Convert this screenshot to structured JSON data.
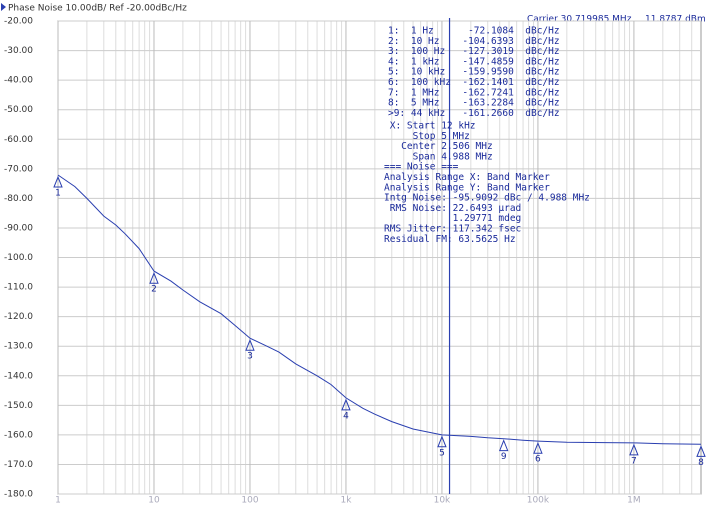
{
  "chart_data": {
    "type": "line",
    "title": "Phase Noise 10.00dB/ Ref -20.00dBc/Hz",
    "carrier": "Carrier 30.719985 MHz",
    "power": "11.8787 dBm",
    "xscale": "log",
    "grid": true,
    "xlim": [
      1,
      5000000
    ],
    "ylim": [
      -180,
      -20
    ],
    "xticks": [
      {
        "value": 1,
        "label": "1"
      },
      {
        "value": 10,
        "label": "10"
      },
      {
        "value": 100,
        "label": "100"
      },
      {
        "value": 1000,
        "label": "1k"
      },
      {
        "value": 10000,
        "label": "10k"
      },
      {
        "value": 100000,
        "label": "100k"
      },
      {
        "value": 1000000,
        "label": "1M"
      }
    ],
    "yticks": [
      {
        "value": -20,
        "label": "-20.00"
      },
      {
        "value": -30,
        "label": "-30.00"
      },
      {
        "value": -40,
        "label": "-40.00"
      },
      {
        "value": -50,
        "label": "-50.00"
      },
      {
        "value": -60,
        "label": "-60.00"
      },
      {
        "value": -70,
        "label": "-70.00"
      },
      {
        "value": -80,
        "label": "-80.00"
      },
      {
        "value": -90,
        "label": "-90.00"
      },
      {
        "value": -100,
        "label": "-100.0"
      },
      {
        "value": -110,
        "label": "-110.0"
      },
      {
        "value": -120,
        "label": "-120.0"
      },
      {
        "value": -130,
        "label": "-130.0"
      },
      {
        "value": -140,
        "label": "-140.0"
      },
      {
        "value": -150,
        "label": "-150.0"
      },
      {
        "value": -160,
        "label": "-160.0"
      },
      {
        "value": -170,
        "label": "-170.0"
      },
      {
        "value": -180,
        "label": "-180.0"
      }
    ],
    "series": [
      {
        "color": "#2a3fb0",
        "x": [
          1,
          1.5,
          2,
          3,
          4,
          5,
          7,
          10,
          15,
          20,
          30,
          50,
          70,
          100,
          150,
          200,
          300,
          500,
          700,
          1000,
          1500,
          2000,
          3000,
          5000,
          7000,
          10000,
          20000,
          30000,
          44000,
          70000,
          100000,
          200000,
          500000,
          1000000,
          2000000,
          5000000
        ],
        "values": [
          -72.1,
          -76,
          -80,
          -86,
          -89,
          -92,
          -97,
          -104.6,
          -108,
          -111,
          -115,
          -119,
          -123,
          -127.3,
          -130,
          -132,
          -136,
          -140,
          -143,
          -147.5,
          -151,
          -153,
          -155.5,
          -158,
          -159,
          -160,
          -160.5,
          -161,
          -161.3,
          -161.8,
          -162.1,
          -162.5,
          -162.6,
          -162.7,
          -163,
          -163.2
        ]
      }
    ],
    "band_start": 12000,
    "markers": [
      {
        "label": "1",
        "x": 1,
        "y": -72.1084,
        "readout": "1:  1 Hz      -72.1084  dBc/Hz"
      },
      {
        "label": "2",
        "x": 10,
        "y": -104.6393,
        "readout": "2:  10 Hz    -104.6393  dBc/Hz"
      },
      {
        "label": "3",
        "x": 100,
        "y": -127.3019,
        "readout": "3:  100 Hz   -127.3019  dBc/Hz"
      },
      {
        "label": "4",
        "x": 1000,
        "y": -147.4859,
        "readout": "4:  1 kHz    -147.4859  dBc/Hz"
      },
      {
        "label": "5",
        "x": 10000,
        "y": -159.959,
        "readout": "5:  10 kHz   -159.9590  dBc/Hz"
      },
      {
        "label": "6",
        "x": 100000,
        "y": -162.1401,
        "readout": "6:  100 kHz  -162.1401  dBc/Hz"
      },
      {
        "label": "7",
        "x": 1000000,
        "y": -162.7241,
        "readout": "7:  1 MHz    -162.7241  dBc/Hz"
      },
      {
        "label": "8",
        "x": 5000000,
        "y": -163.2284,
        "readout": "8:  5 MHz    -163.2284  dBc/Hz"
      },
      {
        "label": "9",
        "x": 44000,
        "y": -161.266,
        "readout": ">9: 44 kHz   -161.2660  dBc/Hz"
      }
    ],
    "info_lines": [
      " X: Start 12 kHz",
      "     Stop 5 MHz",
      "   Center 2.506 MHz",
      "     Span 4.988 MHz",
      "=== Noise ===",
      "Analysis Range X: Band Marker",
      "Analysis Range Y: Band Marker",
      "Intg Noise: -95.9092 dBc / 4.988 MHz",
      " RMS Noise: 22.6493 µrad",
      "            1.29771 mdeg",
      "RMS Jitter: 117.342 fsec",
      "Residual FM: 63.5625 Hz"
    ]
  }
}
